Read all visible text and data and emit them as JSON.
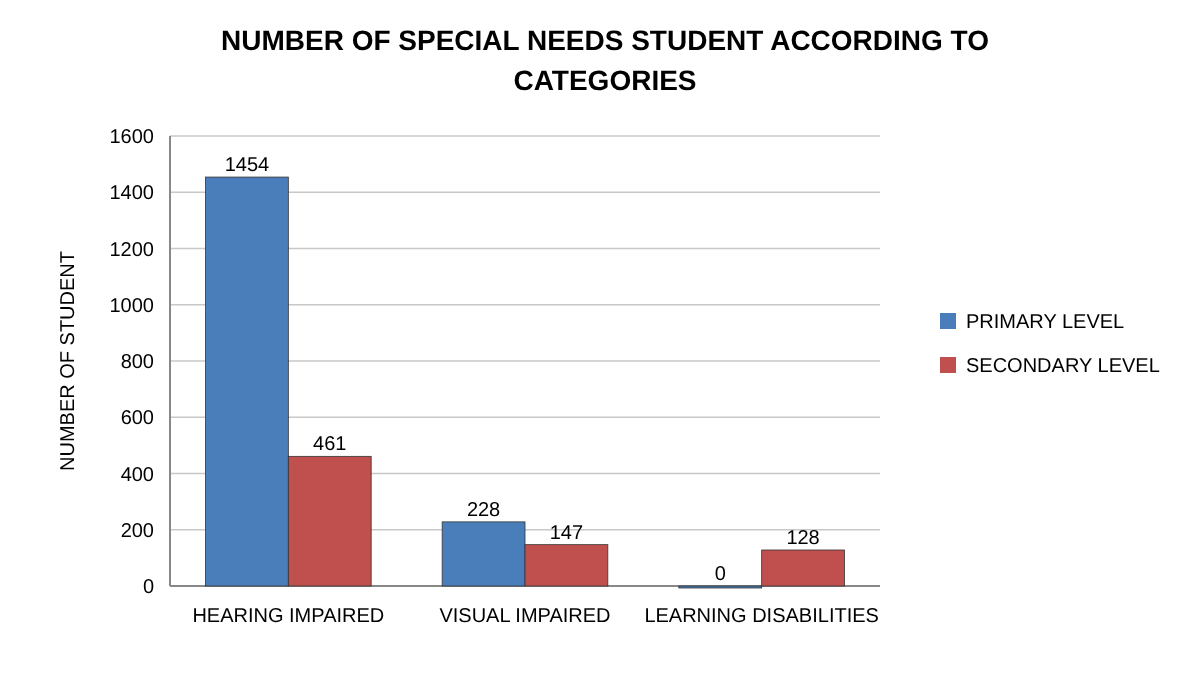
{
  "chart_data": {
    "type": "bar",
    "title": "NUMBER OF SPECIAL NEEDS STUDENT ACCORDING TO CATEGORIES",
    "ylabel": "NUMBER OF STUDENT",
    "categories": [
      "HEARING IMPAIRED",
      "VISUAL IMPAIRED",
      "LEARNING DISABILITIES"
    ],
    "series": [
      {
        "name": "PRIMARY LEVEL",
        "color": "#4a7ebb",
        "values": [
          1454,
          228,
          0
        ]
      },
      {
        "name": "SECONDARY LEVEL",
        "color": "#c0504d",
        "values": [
          461,
          147,
          128
        ]
      }
    ],
    "ylim": [
      0,
      1600
    ],
    "yticks": [
      0,
      200,
      400,
      600,
      800,
      1000,
      1200,
      1400,
      1600
    ],
    "grid": "y",
    "legend": "right",
    "data_labels": true
  }
}
